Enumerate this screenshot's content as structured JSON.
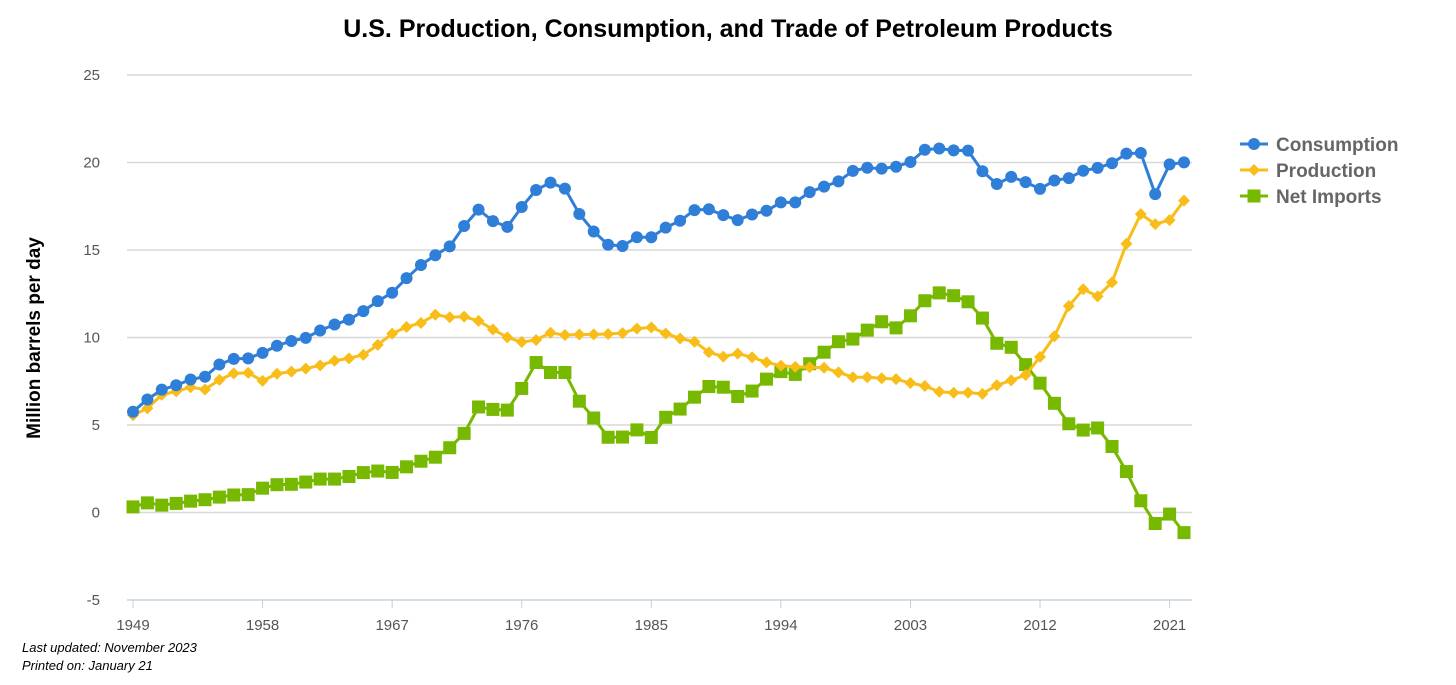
{
  "chart_data": {
    "type": "line",
    "title": "U.S. Production, Consumption, and Trade of Petroleum Products",
    "ylabel": "Million barrels per day",
    "xlabel": "",
    "x": [
      1949,
      1950,
      1951,
      1952,
      1953,
      1954,
      1955,
      1956,
      1957,
      1958,
      1959,
      1960,
      1961,
      1962,
      1963,
      1964,
      1965,
      1966,
      1967,
      1968,
      1969,
      1970,
      1971,
      1972,
      1973,
      1974,
      1975,
      1976,
      1977,
      1978,
      1979,
      1980,
      1981,
      1982,
      1983,
      1984,
      1985,
      1986,
      1987,
      1988,
      1989,
      1990,
      1991,
      1992,
      1993,
      1994,
      1995,
      1996,
      1997,
      1998,
      1999,
      2000,
      2001,
      2002,
      2003,
      2004,
      2005,
      2006,
      2007,
      2008,
      2009,
      2010,
      2011,
      2012,
      2013,
      2014,
      2015,
      2016,
      2017,
      2018,
      2019,
      2020,
      2021,
      2022
    ],
    "xlim": [
      1949,
      2022
    ],
    "xticks": [
      1949,
      1958,
      1967,
      1976,
      1985,
      1994,
      2003,
      2012,
      2021
    ],
    "ylim": [
      -5,
      25
    ],
    "yticks": [
      -5,
      0,
      5,
      10,
      15,
      20,
      25
    ],
    "grid": true,
    "legend": "right",
    "series": [
      {
        "name": "Consumption",
        "color": "#2f7ed8",
        "marker": "circle",
        "values": [
          5.76,
          6.46,
          7.02,
          7.27,
          7.6,
          7.76,
          8.46,
          8.78,
          8.81,
          9.12,
          9.53,
          9.8,
          9.98,
          10.4,
          10.74,
          11.02,
          11.51,
          12.08,
          12.56,
          13.39,
          14.14,
          14.7,
          15.21,
          16.37,
          17.31,
          16.65,
          16.32,
          17.46,
          18.43,
          18.85,
          18.51,
          17.06,
          16.06,
          15.3,
          15.23,
          15.73,
          15.73,
          16.28,
          16.67,
          17.28,
          17.33,
          16.99,
          16.71,
          17.03,
          17.24,
          17.72,
          17.72,
          18.31,
          18.62,
          18.92,
          19.52,
          19.7,
          19.65,
          19.76,
          20.03,
          20.73,
          20.8,
          20.69,
          20.68,
          19.5,
          18.77,
          19.18,
          18.88,
          18.49,
          18.97,
          19.11,
          19.53,
          19.69,
          19.96,
          20.51,
          20.54,
          18.19,
          19.89,
          20.01
        ]
      },
      {
        "name": "Production",
        "color": "#f8bd19",
        "marker": "diamond",
        "values": [
          5.56,
          5.95,
          6.73,
          6.92,
          7.16,
          7.03,
          7.58,
          7.95,
          7.98,
          7.52,
          7.93,
          8.05,
          8.22,
          8.41,
          8.67,
          8.81,
          9.01,
          9.58,
          10.22,
          10.6,
          10.83,
          11.3,
          11.16,
          11.19,
          10.95,
          10.46,
          10.01,
          9.74,
          9.86,
          10.27,
          10.14,
          10.17,
          10.18,
          10.2,
          10.25,
          10.51,
          10.58,
          10.23,
          9.94,
          9.76,
          9.16,
          8.91,
          9.08,
          8.87,
          8.58,
          8.39,
          8.32,
          8.3,
          8.27,
          8.01,
          7.73,
          7.73,
          7.67,
          7.62,
          7.4,
          7.23,
          6.9,
          6.84,
          6.85,
          6.78,
          7.27,
          7.55,
          7.86,
          8.89,
          10.07,
          11.8,
          12.76,
          12.35,
          13.15,
          15.36,
          17.05,
          16.48,
          16.71,
          17.82
        ]
      },
      {
        "name": "Net Imports",
        "color": "#77b800",
        "marker": "square",
        "values": [
          0.32,
          0.55,
          0.42,
          0.52,
          0.65,
          0.73,
          0.88,
          1.0,
          1.02,
          1.39,
          1.59,
          1.61,
          1.74,
          1.91,
          1.91,
          2.06,
          2.28,
          2.37,
          2.29,
          2.61,
          2.93,
          3.16,
          3.7,
          4.52,
          6.03,
          5.89,
          5.85,
          7.09,
          8.57,
          8.0,
          8.0,
          6.36,
          5.4,
          4.3,
          4.31,
          4.72,
          4.29,
          5.44,
          5.91,
          6.59,
          7.2,
          7.16,
          6.63,
          6.94,
          7.62,
          8.05,
          7.89,
          8.5,
          9.16,
          9.76,
          9.91,
          10.42,
          10.9,
          10.55,
          11.24,
          12.1,
          12.55,
          12.39,
          12.04,
          11.11,
          9.67,
          9.44,
          8.45,
          7.39,
          6.24,
          5.07,
          4.71,
          4.83,
          3.77,
          2.34,
          0.67,
          -0.63,
          -0.09,
          -1.15
        ]
      }
    ]
  },
  "footer": {
    "last_updated": "Last updated: November 2023",
    "printed_on": "Printed on: January 21"
  }
}
